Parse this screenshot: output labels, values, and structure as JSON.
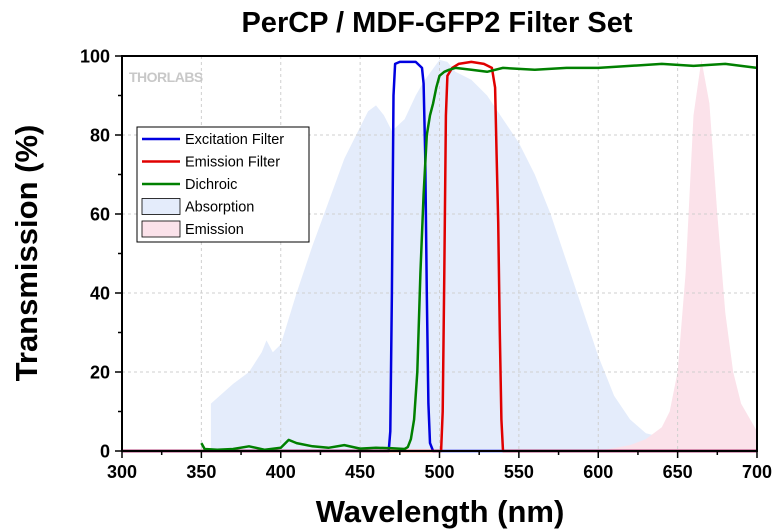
{
  "chart_data": {
    "type": "line",
    "title": "PerCP / MDF-GFP2 Filter Set",
    "xlabel": "Wavelength (nm)",
    "ylabel": "Transmission (%)",
    "xlim": [
      300,
      700
    ],
    "ylim": [
      0,
      100
    ],
    "x_ticks": [
      300,
      350,
      400,
      450,
      500,
      550,
      600,
      650,
      700
    ],
    "y_ticks": [
      0,
      20,
      40,
      60,
      80,
      100
    ],
    "grid": true,
    "legend_position": "top-left",
    "logo_text": "THORLABS",
    "series": [
      {
        "name": "Excitation Filter",
        "kind": "line",
        "color": "#0000e0",
        "x": [
          300,
          468,
          469,
          470,
          471,
          472,
          475,
          480,
          485,
          489,
          490,
          491,
          492,
          493,
          494,
          496,
          700
        ],
        "y": [
          0,
          0,
          5,
          40,
          90,
          98,
          98.5,
          98.5,
          98.5,
          97,
          93,
          75,
          40,
          12,
          2,
          0,
          0
        ]
      },
      {
        "name": "Emission Filter",
        "kind": "line",
        "color": "#e00000",
        "x": [
          300,
          501,
          502,
          503,
          504,
          505,
          508,
          512,
          520,
          528,
          533,
          535,
          536,
          537,
          538,
          539,
          540,
          700
        ],
        "y": [
          0,
          0,
          10,
          45,
          85,
          95,
          97,
          98,
          98.5,
          98,
          97,
          92,
          75,
          58,
          30,
          8,
          0,
          0
        ]
      },
      {
        "name": "Dichroic",
        "kind": "line",
        "color": "#008000",
        "x": [
          350,
          352,
          360,
          370,
          380,
          390,
          400,
          405,
          410,
          420,
          430,
          440,
          450,
          460,
          470,
          478,
          480,
          482,
          484,
          486,
          488,
          490,
          492,
          494,
          496,
          498,
          500,
          503,
          506,
          510,
          520,
          530,
          540,
          560,
          580,
          600,
          620,
          640,
          660,
          680,
          700
        ],
        "y": [
          2,
          0.5,
          0.3,
          0.5,
          1.2,
          0.3,
          0.8,
          2.8,
          2,
          1.2,
          0.8,
          1.5,
          0.6,
          0.8,
          0.7,
          0.5,
          1,
          3,
          8,
          20,
          45,
          65,
          80,
          85,
          88,
          92,
          95,
          96,
          96.5,
          97,
          96.5,
          96,
          97,
          96.5,
          97,
          97,
          97.5,
          98,
          97.5,
          98,
          97
        ]
      },
      {
        "name": "Absorption",
        "kind": "area",
        "color": "#e4ecfb",
        "x": [
          356,
          370,
          380,
          388,
          391,
          395,
          400,
          410,
          420,
          430,
          440,
          450,
          455,
          460,
          465,
          470,
          478,
          485,
          490,
          500,
          505,
          510,
          520,
          530,
          540,
          550,
          560,
          570,
          580,
          590,
          600,
          610,
          620,
          630,
          640,
          650,
          660,
          680,
          700
        ],
        "y": [
          12,
          17,
          20,
          25,
          28,
          25,
          27,
          40,
          52,
          63,
          74,
          82,
          86,
          87.5,
          85,
          81,
          84,
          90,
          93.5,
          99,
          98.5,
          96,
          94,
          90,
          84,
          78,
          70,
          60,
          48,
          36,
          24,
          14,
          8,
          4.5,
          3.5,
          3,
          3,
          2.5,
          2
        ]
      },
      {
        "name": "Emission",
        "kind": "area",
        "color": "#fbe2ea",
        "x": [
          600,
          620,
          630,
          640,
          645,
          650,
          655,
          660,
          665,
          670,
          675,
          680,
          685,
          690,
          700
        ],
        "y": [
          0,
          1.5,
          3,
          6,
          10,
          20,
          45,
          85,
          99,
          88,
          60,
          35,
          20,
          12,
          5
        ]
      }
    ]
  }
}
